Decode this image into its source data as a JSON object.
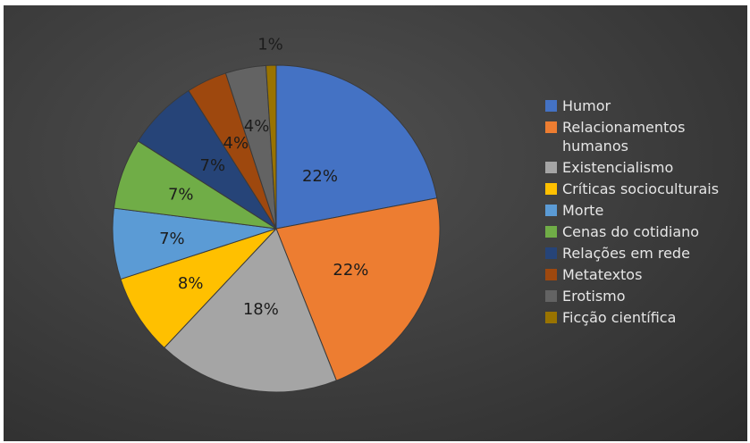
{
  "chart_data": {
    "type": "pie",
    "title": "",
    "categories": [
      "Humor",
      "Relacionamentos humanos",
      "Existencialismo",
      "Críticas socioculturais",
      "Morte",
      "Cenas do cotidiano",
      "Relações em rede",
      "Metatextos",
      "Erotismo",
      "Ficção científica"
    ],
    "values": [
      22,
      22,
      18,
      8,
      7,
      7,
      7,
      4,
      4,
      1
    ],
    "labels": [
      "22%",
      "22%",
      "18%",
      "8%",
      "7%",
      "7%",
      "7%",
      "4%",
      "4%",
      "1%"
    ],
    "colors": [
      "#4472C4",
      "#ED7D31",
      "#A5A5A5",
      "#FFC000",
      "#5B9BD5",
      "#70AD47",
      "#264478",
      "#9E480E",
      "#636363",
      "#997300"
    ],
    "legend_position": "right",
    "start_angle": "12 o'clock",
    "direction": "clockwise"
  },
  "legend": {
    "items": [
      {
        "label": "Humor",
        "color": "#4472C4"
      },
      {
        "label": "Relacionamentos humanos",
        "color": "#ED7D31"
      },
      {
        "label": "Existencialismo",
        "color": "#A5A5A5"
      },
      {
        "label": "Críticas socioculturais",
        "color": "#FFC000"
      },
      {
        "label": "Morte",
        "color": "#5B9BD5"
      },
      {
        "label": "Cenas do cotidiano",
        "color": "#70AD47"
      },
      {
        "label": "Relações em rede",
        "color": "#264478"
      },
      {
        "label": "Metatextos",
        "color": "#9E480E"
      },
      {
        "label": "Erotismo",
        "color": "#636363"
      },
      {
        "label": "Ficção científica",
        "color": "#997300"
      }
    ]
  }
}
